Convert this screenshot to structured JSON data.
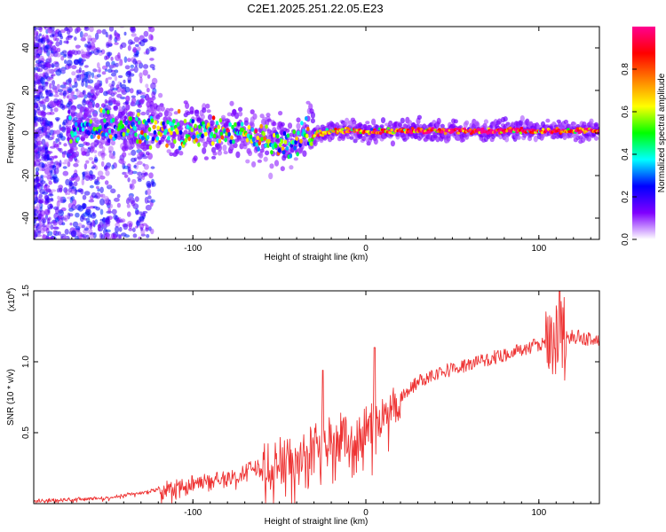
{
  "title": "C2E1.2025.251.22.05.E23",
  "chart_data": [
    {
      "type": "heatmap",
      "name": "spectrogram",
      "xlabel": "Height of straight line (km)",
      "ylabel": "Frequency (Hz)",
      "xlim": [
        -192,
        135
      ],
      "ylim": [
        -50,
        50
      ],
      "xticks": [
        -100,
        0,
        100
      ],
      "yticks": [
        -40,
        -20,
        0,
        20,
        40
      ],
      "grid": false,
      "colorbar": {
        "label": "Normalized spectral amplitude",
        "range": [
          0,
          1
        ],
        "ticks": [
          "0.0",
          "0.2",
          "0.4",
          "0.6",
          "0.8"
        ],
        "colormap": [
          "#ffffff",
          "#7f00ff",
          "#0000ff",
          "#00ffff",
          "#00ff00",
          "#ffff00",
          "#ff8000",
          "#ff0000",
          "#ff0090"
        ]
      },
      "ridge": [
        {
          "x": -172,
          "freq": 2,
          "amp": 0.35
        },
        {
          "x": -150,
          "freq": 3,
          "amp": 0.4
        },
        {
          "x": -125,
          "freq": 3,
          "amp": 0.45
        },
        {
          "x": -100,
          "freq": 1,
          "amp": 0.5
        },
        {
          "x": -80,
          "freq": 0,
          "amp": 0.5
        },
        {
          "x": -60,
          "freq": -2,
          "amp": 0.5
        },
        {
          "x": -45,
          "freq": -5,
          "amp": 0.45
        },
        {
          "x": -35,
          "freq": -2,
          "amp": 0.5
        },
        {
          "x": -20,
          "freq": 1,
          "amp": 0.7
        },
        {
          "x": 0,
          "freq": 1,
          "amp": 0.75
        },
        {
          "x": 50,
          "freq": 1,
          "amp": 0.95
        },
        {
          "x": 100,
          "freq": 1,
          "amp": 0.9
        },
        {
          "x": 135,
          "freq": 1,
          "amp": 0.8
        }
      ]
    },
    {
      "type": "line",
      "name": "snr",
      "xlabel": "Height of straight line (km)",
      "ylabel": "SNR (10 * v/v)",
      "multiplier": "(x10",
      "multiplier_exp": "4",
      "multiplier_close": ")",
      "xlim": [
        -192,
        135
      ],
      "ylim": [
        0,
        1.5
      ],
      "xticks": [
        -100,
        0,
        100
      ],
      "yticks": [
        "0.5",
        "1.0",
        "1.5"
      ],
      "color": "#ee3333",
      "grid": false,
      "envelope": [
        {
          "x": -192,
          "y": 0.02
        },
        {
          "x": -150,
          "y": 0.04
        },
        {
          "x": -120,
          "y": 0.1
        },
        {
          "x": -100,
          "y": 0.15
        },
        {
          "x": -80,
          "y": 0.2
        },
        {
          "x": -60,
          "y": 0.27
        },
        {
          "x": -40,
          "y": 0.35
        },
        {
          "x": -25,
          "y": 0.45
        },
        {
          "x": -10,
          "y": 0.5
        },
        {
          "x": 0,
          "y": 0.55
        },
        {
          "x": 10,
          "y": 0.62
        },
        {
          "x": 20,
          "y": 0.75
        },
        {
          "x": 30,
          "y": 0.86
        },
        {
          "x": 40,
          "y": 0.92
        },
        {
          "x": 60,
          "y": 0.98
        },
        {
          "x": 80,
          "y": 1.05
        },
        {
          "x": 100,
          "y": 1.12
        },
        {
          "x": 110,
          "y": 1.15
        },
        {
          "x": 120,
          "y": 1.18
        },
        {
          "x": 135,
          "y": 1.15
        }
      ],
      "peaks": [
        {
          "x": -25,
          "y": 0.94
        },
        {
          "x": 5,
          "y": 1.1
        },
        {
          "x": 112,
          "y": 1.5
        }
      ]
    }
  ]
}
